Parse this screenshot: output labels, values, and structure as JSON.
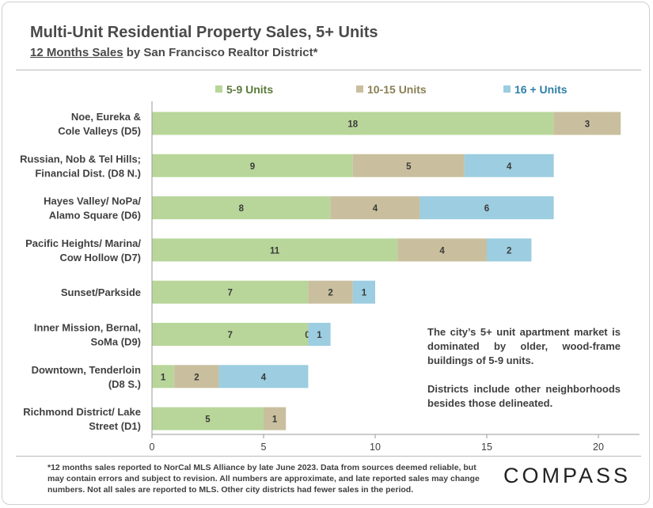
{
  "header": {
    "title": "Multi-Unit Residential Property Sales, 5+ Units",
    "subtitle_underlined": "12 Months Sales",
    "subtitle_rest": " by San Francisco Realtor District*"
  },
  "chart_data": {
    "type": "bar",
    "orientation": "horizontal",
    "stacked": true,
    "categories": [
      [
        "Noe, Eureka &",
        "Cole Valleys (D5)"
      ],
      [
        "Russian, Nob & Tel Hills;",
        "Financial Dist. (D8 N.)"
      ],
      [
        "Hayes Valley/ NoPa/",
        "Alamo Square (D6)"
      ],
      [
        "Pacific Heights/ Marina/",
        "Cow Hollow (D7)"
      ],
      [
        "Sunset/Parkside"
      ],
      [
        "Inner Mission, Bernal,",
        "SoMa (D9)"
      ],
      [
        "Downtown, Tenderloin",
        "(D8 S.)"
      ],
      [
        "Richmond District/ Lake",
        "Street (D1)"
      ]
    ],
    "series": [
      {
        "name": "5-9 Units",
        "color": "#b8d69a",
        "legend_color": "#5a7a3a",
        "values": [
          18,
          9,
          8,
          11,
          7,
          7,
          1,
          5
        ],
        "labels": [
          "18",
          "9",
          "8",
          "11",
          "7",
          "7",
          "1",
          "5"
        ]
      },
      {
        "name": "10-15 Units",
        "color": "#c9bf9e",
        "legend_color": "#8a7f55",
        "values": [
          3,
          5,
          4,
          4,
          2,
          0,
          2,
          1
        ],
        "labels": [
          "3",
          "5",
          "4",
          "4",
          "2",
          "0",
          "2",
          "1"
        ]
      },
      {
        "name": "16 + Units",
        "color": "#9ccde0",
        "legend_color": "#2e7fa6",
        "values": [
          0,
          4,
          6,
          2,
          1,
          1,
          4,
          0
        ],
        "labels": [
          "",
          "4",
          "6",
          "2",
          "1",
          "1",
          "4",
          ""
        ]
      }
    ],
    "xlim": [
      0,
      22
    ],
    "xticks": [
      0,
      5,
      10,
      15,
      20
    ],
    "grid": false,
    "legend": "top"
  },
  "note": {
    "p1": "The city’s 5+ unit apartment market is dominated by older, wood-frame buildings of 5-9 units.",
    "p2": "Districts include other neighborhoods besides those delineated."
  },
  "footnote": "*12 months sales reported to NorCal MLS Alliance by late June 2023. Data from sources deemed reliable, but may contain errors and subject to revision. All numbers are approximate, and late reported sales may change numbers. Not all sales are reported to MLS. Other city districts had fewer sales in the period.",
  "brand": {
    "logo_text": "COMPASS"
  }
}
